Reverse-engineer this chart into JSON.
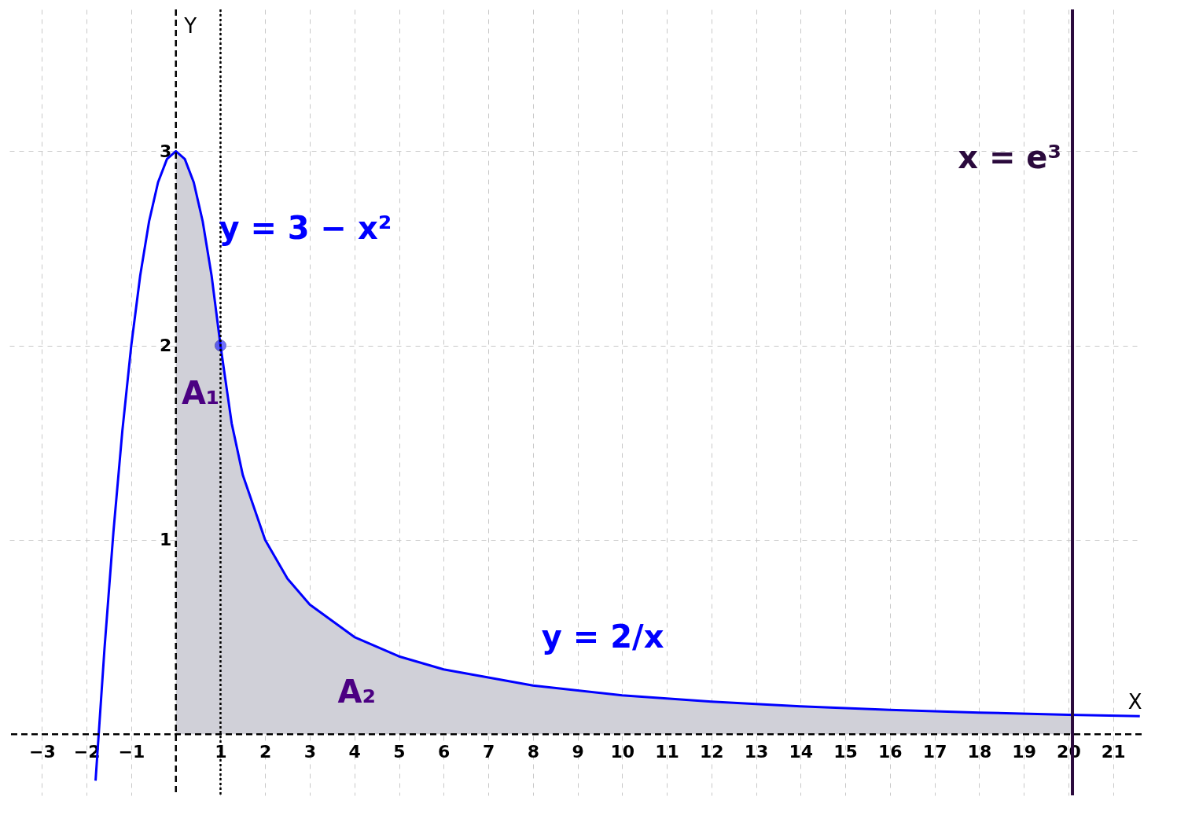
{
  "chart_data": {
    "type": "line",
    "xlabel": "X",
    "ylabel": "Y",
    "xlim": [
      -3.73,
      21.64
    ],
    "ylim": [
      -0.315,
      3.73
    ],
    "xticks": [
      -3,
      -2,
      -1,
      1,
      2,
      3,
      4,
      5,
      6,
      7,
      8,
      9,
      10,
      11,
      12,
      13,
      14,
      15,
      16,
      17,
      18,
      19,
      20,
      21
    ],
    "yticks": [
      1,
      2,
      3
    ],
    "grid": true,
    "series": [
      {
        "type": "area",
        "color": "#d0d0d8",
        "x": [
          0,
          0.2,
          0.4,
          0.6,
          0.8,
          1
        ],
        "values": [
          3,
          2.96,
          2.84,
          2.64,
          2.36,
          2
        ]
      },
      {
        "type": "area",
        "color": "#d0d0d8",
        "x": [
          1,
          1.25,
          1.5,
          2,
          2.5,
          3,
          4,
          5,
          6,
          8,
          10,
          12,
          14,
          16,
          18,
          20.09
        ],
        "values": [
          2,
          1.6,
          1.333,
          1,
          0.8,
          0.667,
          0.5,
          0.4,
          0.333,
          0.25,
          0.2,
          0.167,
          0.143,
          0.125,
          0.111,
          0.1
        ]
      },
      {
        "color": "#0000ff",
        "x": [
          -1.8,
          -1.6,
          -1.4,
          -1.2,
          -1,
          -0.8,
          -0.6,
          -0.4,
          -0.2,
          0,
          0.2,
          0.4,
          0.6,
          0.8,
          1
        ],
        "values": [
          -0.24,
          0.44,
          1.04,
          1.56,
          2,
          2.36,
          2.64,
          2.84,
          2.96,
          3,
          2.96,
          2.84,
          2.64,
          2.36,
          2
        ]
      },
      {
        "color": "#0000ff",
        "x": [
          1,
          1.25,
          1.5,
          2,
          2.5,
          3,
          4,
          5,
          6,
          8,
          10,
          12,
          14,
          16,
          18,
          20,
          21.6
        ],
        "values": [
          2,
          1.6,
          1.333,
          1,
          0.8,
          0.667,
          0.5,
          0.4,
          0.333,
          0.25,
          0.2,
          0.167,
          0.143,
          0.125,
          0.111,
          0.1,
          0.093
        ]
      },
      {
        "type": "scatter",
        "marker": "circle",
        "color": "#0000ff",
        "x": [
          1
        ],
        "values": [
          2
        ]
      }
    ],
    "ref_lines": [
      {
        "axis": "x",
        "value": 20.09,
        "label": "x = e³",
        "color": "#2b0a3d",
        "line_style": "solid"
      },
      {
        "axis": "x",
        "value": 1,
        "color": "#000000",
        "line_style": "dotted"
      },
      {
        "axis": "x",
        "value": 0,
        "color": "#000000",
        "line_style": "dashed"
      },
      {
        "axis": "y",
        "value": 0,
        "color": "#000000",
        "line_style": "dashed"
      }
    ],
    "annotations": [
      "y = 3 − x²",
      "y = 2/x",
      "A₁",
      "A₂"
    ]
  }
}
